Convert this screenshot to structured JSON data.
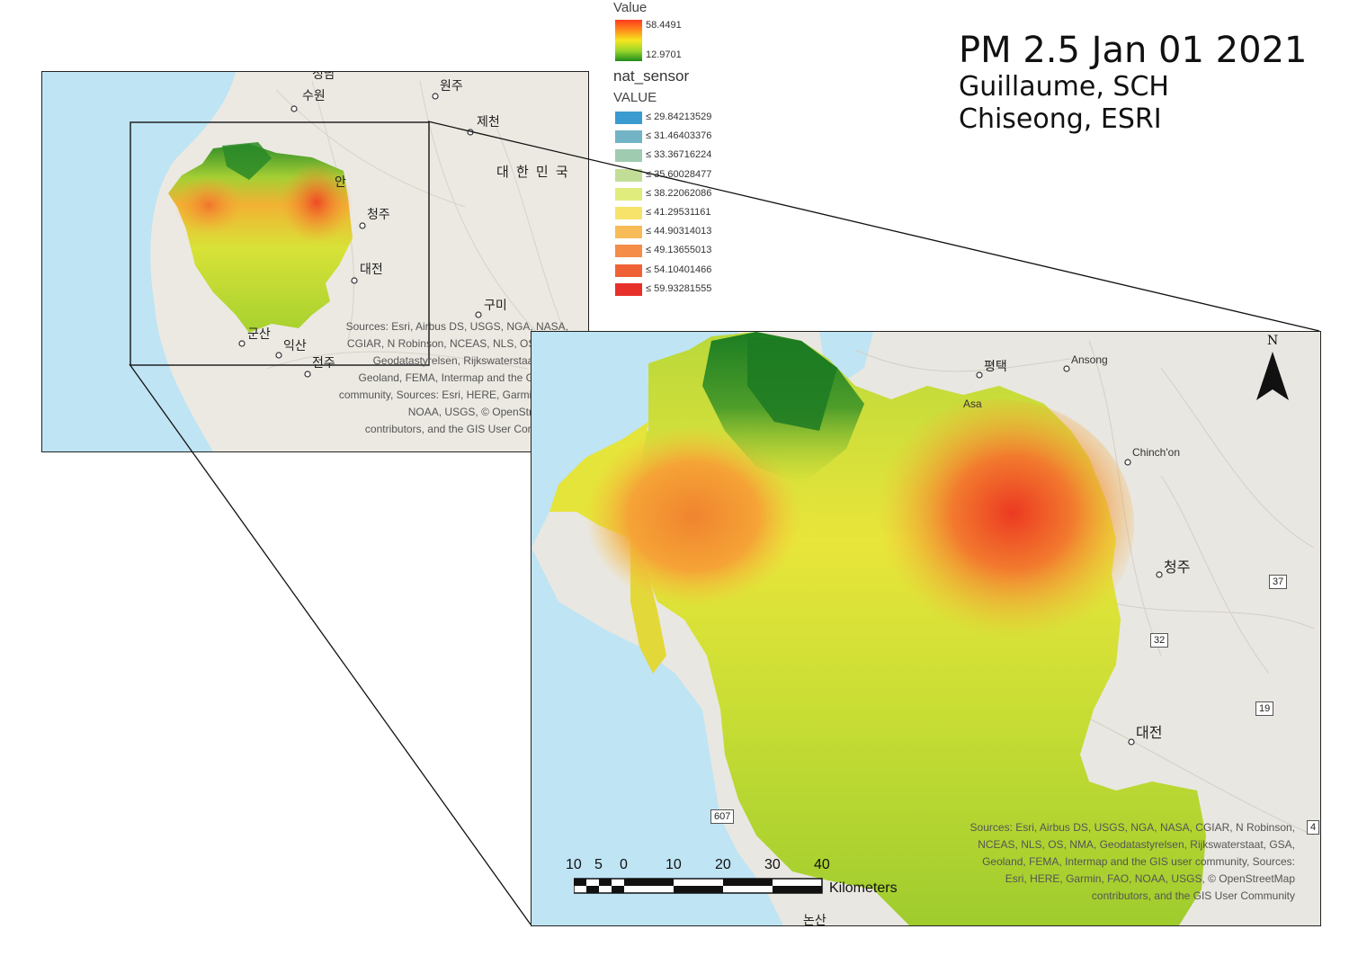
{
  "title": {
    "main": "PM 2.5 Jan 01 2021",
    "line2": "Guillaume, SCH",
    "line3": "Chiseong, ESRI"
  },
  "legend": {
    "value_header": "Value",
    "ramp_max": "58.4491",
    "ramp_min": "12.9701",
    "layer_name": "nat_sensor",
    "field_name": "VALUE",
    "classes": [
      {
        "label": "≤ 29.84213529",
        "color": "#3a9bd0"
      },
      {
        "label": "≤ 31.46403376",
        "color": "#72b3c6"
      },
      {
        "label": "≤ 33.36716224",
        "color": "#9fcbb1"
      },
      {
        "label": "≤ 35.60028477",
        "color": "#c2de96"
      },
      {
        "label": "≤ 38.22062086",
        "color": "#e0ec7c"
      },
      {
        "label": "≤ 41.29531161",
        "color": "#f7e36a"
      },
      {
        "label": "≤ 44.90314013",
        "color": "#f7bb58"
      },
      {
        "label": "≤ 49.13655013",
        "color": "#f58c47"
      },
      {
        "label": "≤ 54.10401466",
        "color": "#ef6236"
      },
      {
        "label": "≤ 59.93281555",
        "color": "#e8302a"
      }
    ]
  },
  "inset_map": {
    "places": {
      "suwon": "수원",
      "wonju": "원주",
      "jecheon": "제천",
      "korea": "대 한 민 국",
      "cheongju": "청주",
      "daejeon": "대전",
      "gumi": "구미",
      "gunsan": "군산",
      "iksan": "익산",
      "jeonju": "전주",
      "cheonan_frag": "안",
      "top_frag": "성남"
    },
    "credit_lines": [
      "Sources: Esri, Airbus DS, USGS, NGA, NASA,",
      "CGIAR, N Robinson, NCEAS, NLS, OS, NMA,",
      "Geodatastyrelsen, Rijkswaterstaat, GSA,",
      "Geoland, FEMA, Intermap and the GIS user",
      "community, Sources: Esri, HERE, Garmin, FAO,",
      "NOAA, USGS, © OpenStreetMap",
      "contributors, and the GIS User Community"
    ]
  },
  "main_map": {
    "places": {
      "pyeongtaek": "평택",
      "ansong": "Ansong",
      "asan_frag": "Asa",
      "chinchon": "Chinch'on",
      "cheongju": "청주",
      "daejeon": "대전",
      "bottom_frag": "논산"
    },
    "shields": [
      "37",
      "32",
      "19",
      "607",
      "4"
    ],
    "credit_lines": [
      "Sources: Esri, Airbus DS, USGS, NGA, NASA, CGIAR, N Robinson,",
      "NCEAS, NLS, OS, NMA, Geodatastyrelsen, Rijkswaterstaat, GSA,",
      "Geoland, FEMA, Intermap and the GIS user community, Sources:",
      "Esri, HERE, Garmin, FAO, NOAA, USGS, © OpenStreetMap",
      "contributors, and the GIS User Community"
    ],
    "scale_labels": [
      "10",
      "5",
      "0",
      "10",
      "20",
      "30",
      "40"
    ],
    "scale_unit": "Kilometers",
    "north_label": "N"
  }
}
